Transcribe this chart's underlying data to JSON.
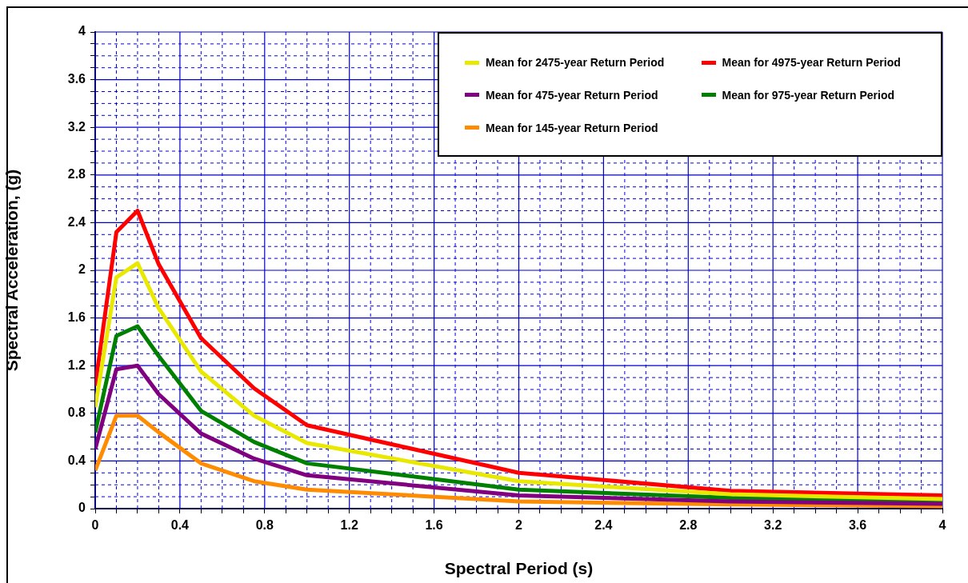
{
  "chart_data": {
    "type": "line",
    "xlabel": "Spectral Period (s)",
    "ylabel": "Spectral Acceleration, (g)",
    "x": [
      0,
      0.1,
      0.2,
      0.3,
      0.5,
      0.75,
      1,
      2,
      3,
      4
    ],
    "series": [
      {
        "name": "Mean for 2475-year Return Period",
        "color": "#e8e800",
        "values": [
          0.85,
          1.94,
          2.06,
          1.68,
          1.15,
          0.78,
          0.55,
          0.23,
          0.12,
          0.08
        ]
      },
      {
        "name": "Mean for 4975-year Return Period",
        "color": "#ff0000",
        "values": [
          1.03,
          2.32,
          2.5,
          2.05,
          1.43,
          1.01,
          0.7,
          0.3,
          0.15,
          0.11
        ]
      },
      {
        "name": "Mean for 475-year Return Period",
        "color": "#800080",
        "values": [
          0.5,
          1.17,
          1.2,
          0.96,
          0.63,
          0.42,
          0.28,
          0.11,
          0.06,
          0.04
        ]
      },
      {
        "name": "Mean for 975-year Return Period",
        "color": "#008000",
        "values": [
          0.64,
          1.45,
          1.53,
          1.28,
          0.82,
          0.56,
          0.38,
          0.16,
          0.09,
          0.06
        ]
      },
      {
        "name": "Mean for 145-year Return Period",
        "color": "#ff8c00",
        "values": [
          0.32,
          0.78,
          0.78,
          0.64,
          0.38,
          0.23,
          0.16,
          0.06,
          0.035,
          0.02
        ]
      }
    ],
    "xlim": [
      0,
      4
    ],
    "xticks": [
      0,
      {
        "value": 0.1,
        "label": null
      },
      {
        "value": 0.2,
        "label": null
      },
      {
        "value": 0.3,
        "label": null
      },
      0.4,
      {
        "value": 0.5,
        "label": null
      },
      {
        "value": 0.6,
        "label": null
      },
      {
        "value": 0.7,
        "label": null
      },
      0.8,
      {
        "value": 0.9,
        "label": null
      },
      {
        "value": 1,
        "label": null
      },
      {
        "value": 1.1,
        "label": null
      },
      1.2,
      {
        "value": 1.3,
        "label": null
      },
      {
        "value": 1.4,
        "label": null
      },
      {
        "value": 1.5,
        "label": null
      },
      1.6,
      {
        "value": 1.7,
        "label": null
      },
      {
        "value": 1.8,
        "label": null
      },
      {
        "value": 1.9,
        "label": null
      },
      2,
      {
        "value": 2.1,
        "label": null
      },
      {
        "value": 2.2,
        "label": null
      },
      {
        "value": 2.3,
        "label": null
      },
      2.4,
      {
        "value": 2.5,
        "label": null
      },
      {
        "value": 2.6,
        "label": null
      },
      {
        "value": 2.7,
        "label": null
      },
      2.8,
      {
        "value": 2.9,
        "label": null
      },
      {
        "value": 3,
        "label": null
      },
      {
        "value": 3.1,
        "label": null
      },
      3.2,
      {
        "value": 3.3,
        "label": null
      },
      {
        "value": 3.4,
        "label": null
      },
      {
        "value": 3.5,
        "label": null
      },
      3.6,
      {
        "value": 3.7,
        "label": null
      },
      {
        "value": 3.8,
        "label": null
      },
      {
        "value": 3.9,
        "label": null
      },
      4
    ],
    "ylim": [
      0,
      4
    ],
    "yticks": [
      0,
      {
        "value": 0.1,
        "label": null
      },
      {
        "value": 0.2,
        "label": null
      },
      {
        "value": 0.3,
        "label": null
      },
      0.4,
      {
        "value": 0.5,
        "label": null
      },
      {
        "value": 0.6,
        "label": null
      },
      {
        "value": 0.7,
        "label": null
      },
      0.8,
      {
        "value": 0.9,
        "label": null
      },
      {
        "value": 1,
        "label": null
      },
      {
        "value": 1.1,
        "label": null
      },
      1.2,
      {
        "value": 1.3,
        "label": null
      },
      {
        "value": 1.4,
        "label": null
      },
      {
        "value": 1.5,
        "label": null
      },
      1.6,
      {
        "value": 1.7,
        "label": null
      },
      {
        "value": 1.8,
        "label": null
      },
      {
        "value": 1.9,
        "label": null
      },
      2,
      {
        "value": 2.1,
        "label": null
      },
      {
        "value": 2.2,
        "label": null
      },
      {
        "value": 2.3,
        "label": null
      },
      2.4,
      {
        "value": 2.5,
        "label": null
      },
      {
        "value": 2.6,
        "label": null
      },
      {
        "value": 2.7,
        "label": null
      },
      2.8,
      {
        "value": 2.9,
        "label": null
      },
      {
        "value": 3,
        "label": null
      },
      {
        "value": 3.1,
        "label": null
      },
      3.2,
      {
        "value": 3.3,
        "label": null
      },
      {
        "value": 3.4,
        "label": null
      },
      {
        "value": 3.5,
        "label": null
      },
      3.6,
      {
        "value": 3.7,
        "label": null
      },
      {
        "value": 3.8,
        "label": null
      },
      {
        "value": 3.9,
        "label": null
      },
      4
    ],
    "grid": true,
    "legend": "top right",
    "marker": "none",
    "line_style": "solid"
  }
}
